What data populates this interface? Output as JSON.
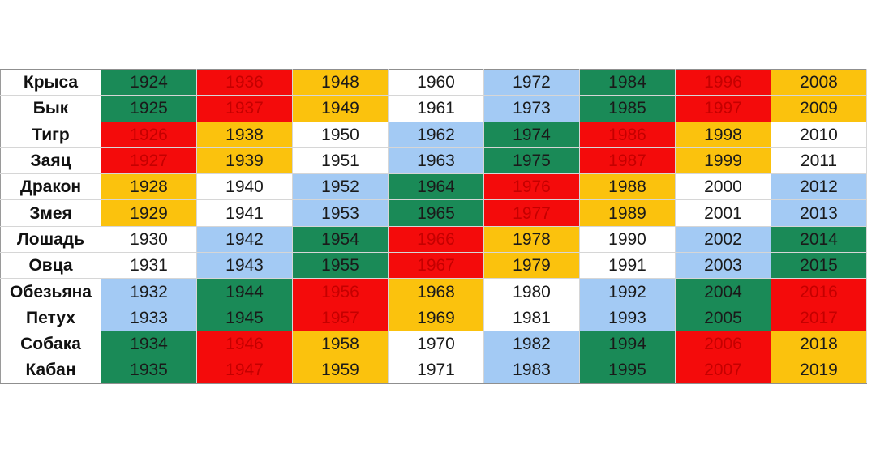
{
  "colors": {
    "green": "#1a8a57",
    "red": "#f40b0b",
    "yellow": "#fbc20d",
    "blue": "#a3caf4",
    "white": "#ffffff",
    "red_text": "#c50000"
  },
  "rows": [
    {
      "animal": "Крыса",
      "cells": [
        {
          "year": "1924",
          "color": "green"
        },
        {
          "year": "1936",
          "color": "red"
        },
        {
          "year": "1948",
          "color": "yellow"
        },
        {
          "year": "1960",
          "color": "white"
        },
        {
          "year": "1972",
          "color": "blue"
        },
        {
          "year": "1984",
          "color": "green"
        },
        {
          "year": "1996",
          "color": "red"
        },
        {
          "year": "2008",
          "color": "yellow"
        }
      ]
    },
    {
      "animal": "Бык",
      "cells": [
        {
          "year": "1925",
          "color": "green"
        },
        {
          "year": "1937",
          "color": "red"
        },
        {
          "year": "1949",
          "color": "yellow"
        },
        {
          "year": "1961",
          "color": "white"
        },
        {
          "year": "1973",
          "color": "blue"
        },
        {
          "year": "1985",
          "color": "green"
        },
        {
          "year": "1997",
          "color": "red"
        },
        {
          "year": "2009",
          "color": "yellow"
        }
      ]
    },
    {
      "animal": "Тигр",
      "cells": [
        {
          "year": "1926",
          "color": "red"
        },
        {
          "year": "1938",
          "color": "yellow"
        },
        {
          "year": "1950",
          "color": "white"
        },
        {
          "year": "1962",
          "color": "blue"
        },
        {
          "year": "1974",
          "color": "green"
        },
        {
          "year": "1986",
          "color": "red"
        },
        {
          "year": "1998",
          "color": "yellow"
        },
        {
          "year": "2010",
          "color": "white"
        }
      ]
    },
    {
      "animal": "Заяц",
      "cells": [
        {
          "year": "1927",
          "color": "red"
        },
        {
          "year": "1939",
          "color": "yellow"
        },
        {
          "year": "1951",
          "color": "white"
        },
        {
          "year": "1963",
          "color": "blue"
        },
        {
          "year": "1975",
          "color": "green"
        },
        {
          "year": "1987",
          "color": "red"
        },
        {
          "year": "1999",
          "color": "yellow"
        },
        {
          "year": "2011",
          "color": "white"
        }
      ]
    },
    {
      "animal": "Дракон",
      "cells": [
        {
          "year": "1928",
          "color": "yellow"
        },
        {
          "year": "1940",
          "color": "white"
        },
        {
          "year": "1952",
          "color": "blue"
        },
        {
          "year": "1964",
          "color": "green"
        },
        {
          "year": "1976",
          "color": "red"
        },
        {
          "year": "1988",
          "color": "yellow"
        },
        {
          "year": "2000",
          "color": "white"
        },
        {
          "year": "2012",
          "color": "blue"
        }
      ]
    },
    {
      "animal": "Змея",
      "cells": [
        {
          "year": "1929",
          "color": "yellow"
        },
        {
          "year": "1941",
          "color": "white"
        },
        {
          "year": "1953",
          "color": "blue"
        },
        {
          "year": "1965",
          "color": "green"
        },
        {
          "year": "1977",
          "color": "red"
        },
        {
          "year": "1989",
          "color": "yellow"
        },
        {
          "year": "2001",
          "color": "white"
        },
        {
          "year": "2013",
          "color": "blue"
        }
      ]
    },
    {
      "animal": "Лошадь",
      "cells": [
        {
          "year": "1930",
          "color": "white"
        },
        {
          "year": "1942",
          "color": "blue"
        },
        {
          "year": "1954",
          "color": "green"
        },
        {
          "year": "1966",
          "color": "red"
        },
        {
          "year": "1978",
          "color": "yellow"
        },
        {
          "year": "1990",
          "color": "white"
        },
        {
          "year": "2002",
          "color": "blue"
        },
        {
          "year": "2014",
          "color": "green"
        }
      ]
    },
    {
      "animal": "Овца",
      "cells": [
        {
          "year": "1931",
          "color": "white"
        },
        {
          "year": "1943",
          "color": "blue"
        },
        {
          "year": "1955",
          "color": "green"
        },
        {
          "year": "1967",
          "color": "red"
        },
        {
          "year": "1979",
          "color": "yellow"
        },
        {
          "year": "1991",
          "color": "white"
        },
        {
          "year": "2003",
          "color": "blue"
        },
        {
          "year": "2015",
          "color": "green"
        }
      ]
    },
    {
      "animal": "Обезьяна",
      "cells": [
        {
          "year": "1932",
          "color": "blue"
        },
        {
          "year": "1944",
          "color": "green"
        },
        {
          "year": "1956",
          "color": "red"
        },
        {
          "year": "1968",
          "color": "yellow"
        },
        {
          "year": "1980",
          "color": "white"
        },
        {
          "year": "1992",
          "color": "blue"
        },
        {
          "year": "2004",
          "color": "green"
        },
        {
          "year": "2016",
          "color": "red"
        }
      ]
    },
    {
      "animal": "Петух",
      "cells": [
        {
          "year": "1933",
          "color": "blue"
        },
        {
          "year": "1945",
          "color": "green"
        },
        {
          "year": "1957",
          "color": "red"
        },
        {
          "year": "1969",
          "color": "yellow"
        },
        {
          "year": "1981",
          "color": "white"
        },
        {
          "year": "1993",
          "color": "blue"
        },
        {
          "year": "2005",
          "color": "green"
        },
        {
          "year": "2017",
          "color": "red"
        }
      ]
    },
    {
      "animal": "Собака",
      "cells": [
        {
          "year": "1934",
          "color": "green"
        },
        {
          "year": "1946",
          "color": "red"
        },
        {
          "year": "1958",
          "color": "yellow"
        },
        {
          "year": "1970",
          "color": "white"
        },
        {
          "year": "1982",
          "color": "blue"
        },
        {
          "year": "1994",
          "color": "green"
        },
        {
          "year": "2006",
          "color": "red"
        },
        {
          "year": "2018",
          "color": "yellow"
        }
      ]
    },
    {
      "animal": "Кабан",
      "cells": [
        {
          "year": "1935",
          "color": "green"
        },
        {
          "year": "1947",
          "color": "red"
        },
        {
          "year": "1959",
          "color": "yellow"
        },
        {
          "year": "1971",
          "color": "white"
        },
        {
          "year": "1983",
          "color": "blue"
        },
        {
          "year": "1995",
          "color": "green"
        },
        {
          "year": "2007",
          "color": "red"
        },
        {
          "year": "2019",
          "color": "yellow"
        }
      ]
    }
  ]
}
